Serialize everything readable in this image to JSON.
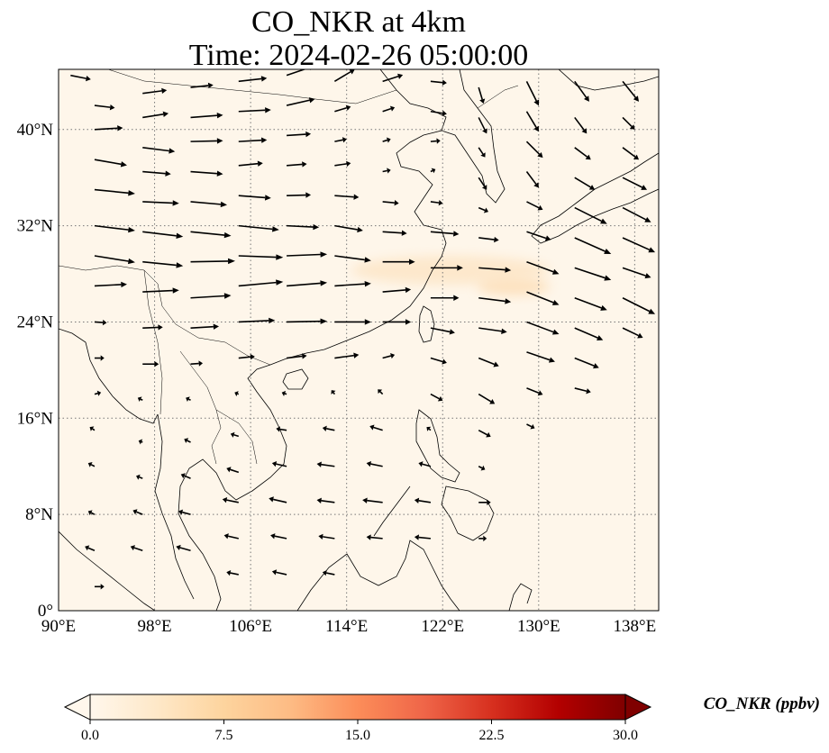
{
  "title": "CO_NKR at 4km",
  "time_label": "Time: 2024-02-26 05:00:00",
  "colors": {
    "map_background": "#fef6ea",
    "plume": "#fde8cc",
    "arrow": "#000000",
    "gridline": "#777777"
  },
  "chart_data": {
    "type": "map-quiver",
    "projection": "PlateCarree",
    "lon_range": [
      90,
      140
    ],
    "lat_range": [
      0,
      45
    ],
    "lon_ticks": [
      90,
      98,
      106,
      114,
      122,
      130,
      138
    ],
    "lat_ticks": [
      0,
      8,
      16,
      24,
      32,
      40
    ],
    "lon_tick_labels": [
      "90°E",
      "98°E",
      "106°E",
      "114°E",
      "122°E",
      "130°E",
      "138°E"
    ],
    "lat_tick_labels": [
      "0°",
      "8°N",
      "16°N",
      "24°N",
      "32°N",
      "40°N"
    ],
    "grid": true,
    "colorbar": {
      "title": "CO_NKR (ppbv)",
      "vmin": 0.0,
      "vmax": 30.0,
      "tick_values": [
        0.0,
        7.5,
        15.0,
        22.5,
        30.0
      ],
      "tick_labels": [
        "0.0",
        "7.5",
        "15.0",
        "22.5",
        "30.0"
      ],
      "colormap": "OrRd",
      "extend": "both",
      "placement": "bottom"
    },
    "field_max_approx_ppbv": 2.0,
    "wind_field": {
      "description": "Wind vectors; lon, lat (degrees), u, v (relative m/s)",
      "vectors": [
        [
          91,
          44.5,
          2.5,
          -0.5
        ],
        [
          93,
          42,
          2.5,
          -0.3
        ],
        [
          93,
          40,
          3.5,
          0.2
        ],
        [
          93,
          37.5,
          4,
          -0.7
        ],
        [
          93,
          35,
          5,
          -0.5
        ],
        [
          93,
          32,
          5,
          -0.6
        ],
        [
          93,
          29.5,
          5,
          -0.8
        ],
        [
          93,
          27,
          4,
          0.2
        ],
        [
          93,
          24,
          1.5,
          -0.1
        ],
        [
          93,
          21,
          1.2,
          0
        ],
        [
          93,
          18,
          0.8,
          0.2
        ],
        [
          93,
          15,
          -0.6,
          0.4
        ],
        [
          93,
          12,
          -0.8,
          0.4
        ],
        [
          93,
          8,
          -0.8,
          0.4
        ],
        [
          93,
          5,
          -1.2,
          0.5
        ],
        [
          93,
          2,
          1.2,
          0
        ],
        [
          97,
          43,
          3,
          0.4
        ],
        [
          97,
          41,
          3.2,
          0.5
        ],
        [
          97,
          38.5,
          4,
          -0.5
        ],
        [
          97,
          36.5,
          3.5,
          -0.3
        ],
        [
          97,
          34,
          4.5,
          -0.2
        ],
        [
          97,
          31.5,
          5,
          -0.6
        ],
        [
          97,
          29,
          5,
          -0.5
        ],
        [
          97,
          26.5,
          4.5,
          0.2
        ],
        [
          97,
          23.5,
          2.5,
          0.1
        ],
        [
          97,
          20.5,
          2,
          0
        ],
        [
          97,
          17.5,
          -0.6,
          0.3
        ],
        [
          97,
          14,
          -0.5,
          0.2
        ],
        [
          97,
          11,
          -0.8,
          0.3
        ],
        [
          97,
          8,
          -1.2,
          0.5
        ],
        [
          97,
          5,
          -1.5,
          0.5
        ],
        [
          101,
          43.5,
          2.8,
          0.3
        ],
        [
          101,
          41,
          4,
          0.3
        ],
        [
          101,
          39,
          4,
          0.1
        ],
        [
          101,
          36.5,
          4,
          -0.3
        ],
        [
          101,
          34,
          4.5,
          -0.4
        ],
        [
          101,
          31.5,
          5,
          -0.5
        ],
        [
          101,
          29,
          5.5,
          0.1
        ],
        [
          101,
          26,
          5,
          0.3
        ],
        [
          101,
          23.5,
          3.5,
          0.2
        ],
        [
          101,
          20.5,
          1.5,
          0.1
        ],
        [
          101,
          17.5,
          -0.6,
          0.3
        ],
        [
          101,
          14,
          -0.8,
          0.4
        ],
        [
          101,
          11,
          -1.2,
          0.5
        ],
        [
          101,
          8,
          -1.5,
          0.4
        ],
        [
          101,
          5,
          -1.8,
          0.5
        ],
        [
          105,
          44,
          3.5,
          0.4
        ],
        [
          105,
          41.5,
          4,
          0.2
        ],
        [
          105,
          39,
          3.5,
          0.2
        ],
        [
          105,
          37,
          3,
          0.3
        ],
        [
          105,
          34.5,
          4,
          -0.3
        ],
        [
          105,
          32,
          5,
          -0.5
        ],
        [
          105,
          29.5,
          5.5,
          -0.2
        ],
        [
          105,
          27,
          5.5,
          0.5
        ],
        [
          105,
          24,
          4.5,
          0.2
        ],
        [
          105,
          21,
          2,
          0.2
        ],
        [
          105,
          18,
          -0.5,
          0.2
        ],
        [
          105,
          14.5,
          -1,
          0.3
        ],
        [
          105,
          11.5,
          -1.5,
          0.5
        ],
        [
          105,
          9,
          -2,
          0.4
        ],
        [
          105,
          6,
          -1.8,
          0.4
        ],
        [
          105,
          3,
          -1.5,
          0.3
        ],
        [
          109,
          44.5,
          3.5,
          1.2
        ],
        [
          109,
          42,
          3.5,
          0.8
        ],
        [
          109,
          39.5,
          3,
          0.2
        ],
        [
          109,
          37,
          2.5,
          0.2
        ],
        [
          109,
          34.5,
          3,
          0.1
        ],
        [
          109,
          32,
          4,
          -0.2
        ],
        [
          109,
          29.5,
          5,
          0.2
        ],
        [
          109,
          27,
          5,
          0.4
        ],
        [
          109,
          24,
          5,
          0.1
        ],
        [
          109,
          21,
          2.5,
          0.3
        ],
        [
          109,
          18,
          -0.6,
          0.2
        ],
        [
          109,
          15,
          -1.3,
          0.2
        ],
        [
          109,
          12,
          -1.8,
          0.4
        ],
        [
          109,
          9,
          -2.2,
          0.5
        ],
        [
          109,
          6,
          -2,
          0.4
        ],
        [
          109,
          3,
          -1.8,
          0.4
        ],
        [
          113,
          44,
          2.5,
          1.5
        ],
        [
          113,
          41.5,
          2,
          0.6
        ],
        [
          113,
          39,
          1.5,
          0.3
        ],
        [
          113,
          37,
          2,
          0.3
        ],
        [
          113,
          34.5,
          3,
          -0.2
        ],
        [
          113,
          32,
          3.5,
          -0.6
        ],
        [
          113,
          29.5,
          4.5,
          -0.6
        ],
        [
          113,
          27,
          4.5,
          0.3
        ],
        [
          113,
          24,
          4.5,
          0
        ],
        [
          113,
          21,
          3,
          0.4
        ],
        [
          113,
          18,
          -0.4,
          0.5
        ],
        [
          113,
          15,
          -1.5,
          0.3
        ],
        [
          113,
          12,
          -2.2,
          0.3
        ],
        [
          113,
          9,
          -2.2,
          0.3
        ],
        [
          113,
          6,
          -2,
          0.3
        ],
        [
          113,
          3,
          -1.5,
          0.3
        ],
        [
          117,
          44,
          2.5,
          0.8
        ],
        [
          117,
          41.5,
          1.5,
          0.5
        ],
        [
          117,
          39,
          1,
          0.3
        ],
        [
          117,
          36.5,
          1,
          0.2
        ],
        [
          117,
          34,
          2,
          -0.2
        ],
        [
          117,
          31.5,
          3,
          -0.2
        ],
        [
          117,
          29,
          4,
          0
        ],
        [
          117,
          26.5,
          3.5,
          0.3
        ],
        [
          117,
          24,
          3.5,
          0
        ],
        [
          117,
          21,
          1.5,
          0.4
        ],
        [
          117,
          18,
          -0.6,
          0.6
        ],
        [
          117,
          15,
          -1.6,
          0.5
        ],
        [
          117,
          12,
          -2,
          0.4
        ],
        [
          117,
          9,
          -2.5,
          0.3
        ],
        [
          117,
          6,
          -2,
          0.2
        ],
        [
          121,
          44,
          2,
          -0.2
        ],
        [
          121,
          41.5,
          2,
          -0.3
        ],
        [
          121,
          39,
          1.2,
          0.1
        ],
        [
          121,
          36.5,
          0.6,
          0.3
        ],
        [
          121,
          34,
          1.5,
          -0.2
        ],
        [
          121,
          31.5,
          3.5,
          -0.3
        ],
        [
          121,
          28.5,
          4,
          0
        ],
        [
          121,
          26,
          3.5,
          0
        ],
        [
          121,
          23.5,
          3,
          -0.6
        ],
        [
          121,
          21,
          2,
          -0.6
        ],
        [
          121,
          18,
          1.5,
          -0.8
        ],
        [
          121,
          15,
          -0.5,
          0.4
        ],
        [
          121,
          12,
          -1.5,
          0.4
        ],
        [
          121,
          9,
          -2,
          0.3
        ],
        [
          121,
          6,
          -2,
          0.2
        ],
        [
          125,
          43.5,
          0.6,
          -2
        ],
        [
          125,
          41,
          1,
          -2
        ],
        [
          125,
          38.5,
          0.8,
          -1.2
        ],
        [
          125,
          36,
          1,
          -1.5
        ],
        [
          125,
          33.5,
          1.2,
          -0.5
        ],
        [
          125,
          31,
          2.5,
          -0.3
        ],
        [
          125,
          28.5,
          4,
          -0.3
        ],
        [
          125,
          26,
          4,
          -0.5
        ],
        [
          125,
          23.5,
          3.5,
          -0.5
        ],
        [
          125,
          21,
          2.5,
          -1
        ],
        [
          125,
          18,
          2,
          -1.2
        ],
        [
          125,
          15,
          1.5,
          -0.8
        ],
        [
          125,
          12,
          0.8,
          -0.4
        ],
        [
          125,
          9,
          1.5,
          0
        ],
        [
          125,
          6,
          1,
          0
        ],
        [
          129,
          44,
          1.5,
          -3
        ],
        [
          129,
          41.5,
          1.5,
          -2.5
        ],
        [
          129,
          39,
          2,
          -2
        ],
        [
          129,
          36.5,
          1.5,
          -2
        ],
        [
          129,
          34,
          2,
          -1
        ],
        [
          129,
          31.5,
          3,
          -1
        ],
        [
          129,
          29,
          4,
          -1.5
        ],
        [
          129,
          26.5,
          4,
          -1.6
        ],
        [
          129,
          24,
          4,
          -1.5
        ],
        [
          129,
          21.5,
          3.5,
          -1.2
        ],
        [
          129,
          18.5,
          2,
          -0.8
        ],
        [
          129,
          15.5,
          1,
          -0.5
        ],
        [
          133,
          44,
          1.8,
          -2.5
        ],
        [
          133,
          41,
          1.5,
          -2
        ],
        [
          133,
          38.5,
          2,
          -1.5
        ],
        [
          133,
          36,
          2.5,
          -1.5
        ],
        [
          133,
          33.5,
          4,
          -2
        ],
        [
          133,
          31,
          4.5,
          -2
        ],
        [
          133,
          28.5,
          4.5,
          -1.5
        ],
        [
          133,
          26,
          4,
          -1.5
        ],
        [
          133,
          23.5,
          3.5,
          -1.5
        ],
        [
          133,
          21,
          3,
          -1.2
        ],
        [
          133,
          18.5,
          2,
          -0.5
        ],
        [
          137,
          44,
          2,
          -2.5
        ],
        [
          137,
          41,
          1.5,
          -1.5
        ],
        [
          137,
          38.5,
          2,
          -1.5
        ],
        [
          137,
          36,
          3,
          -1.5
        ],
        [
          137,
          33.5,
          3.5,
          -1.8
        ],
        [
          137,
          31,
          4,
          -1.8
        ],
        [
          137,
          28.5,
          3.5,
          -1.2
        ],
        [
          137,
          26,
          4,
          -2
        ],
        [
          137,
          23.5,
          2.5,
          -1.2
        ]
      ]
    }
  }
}
